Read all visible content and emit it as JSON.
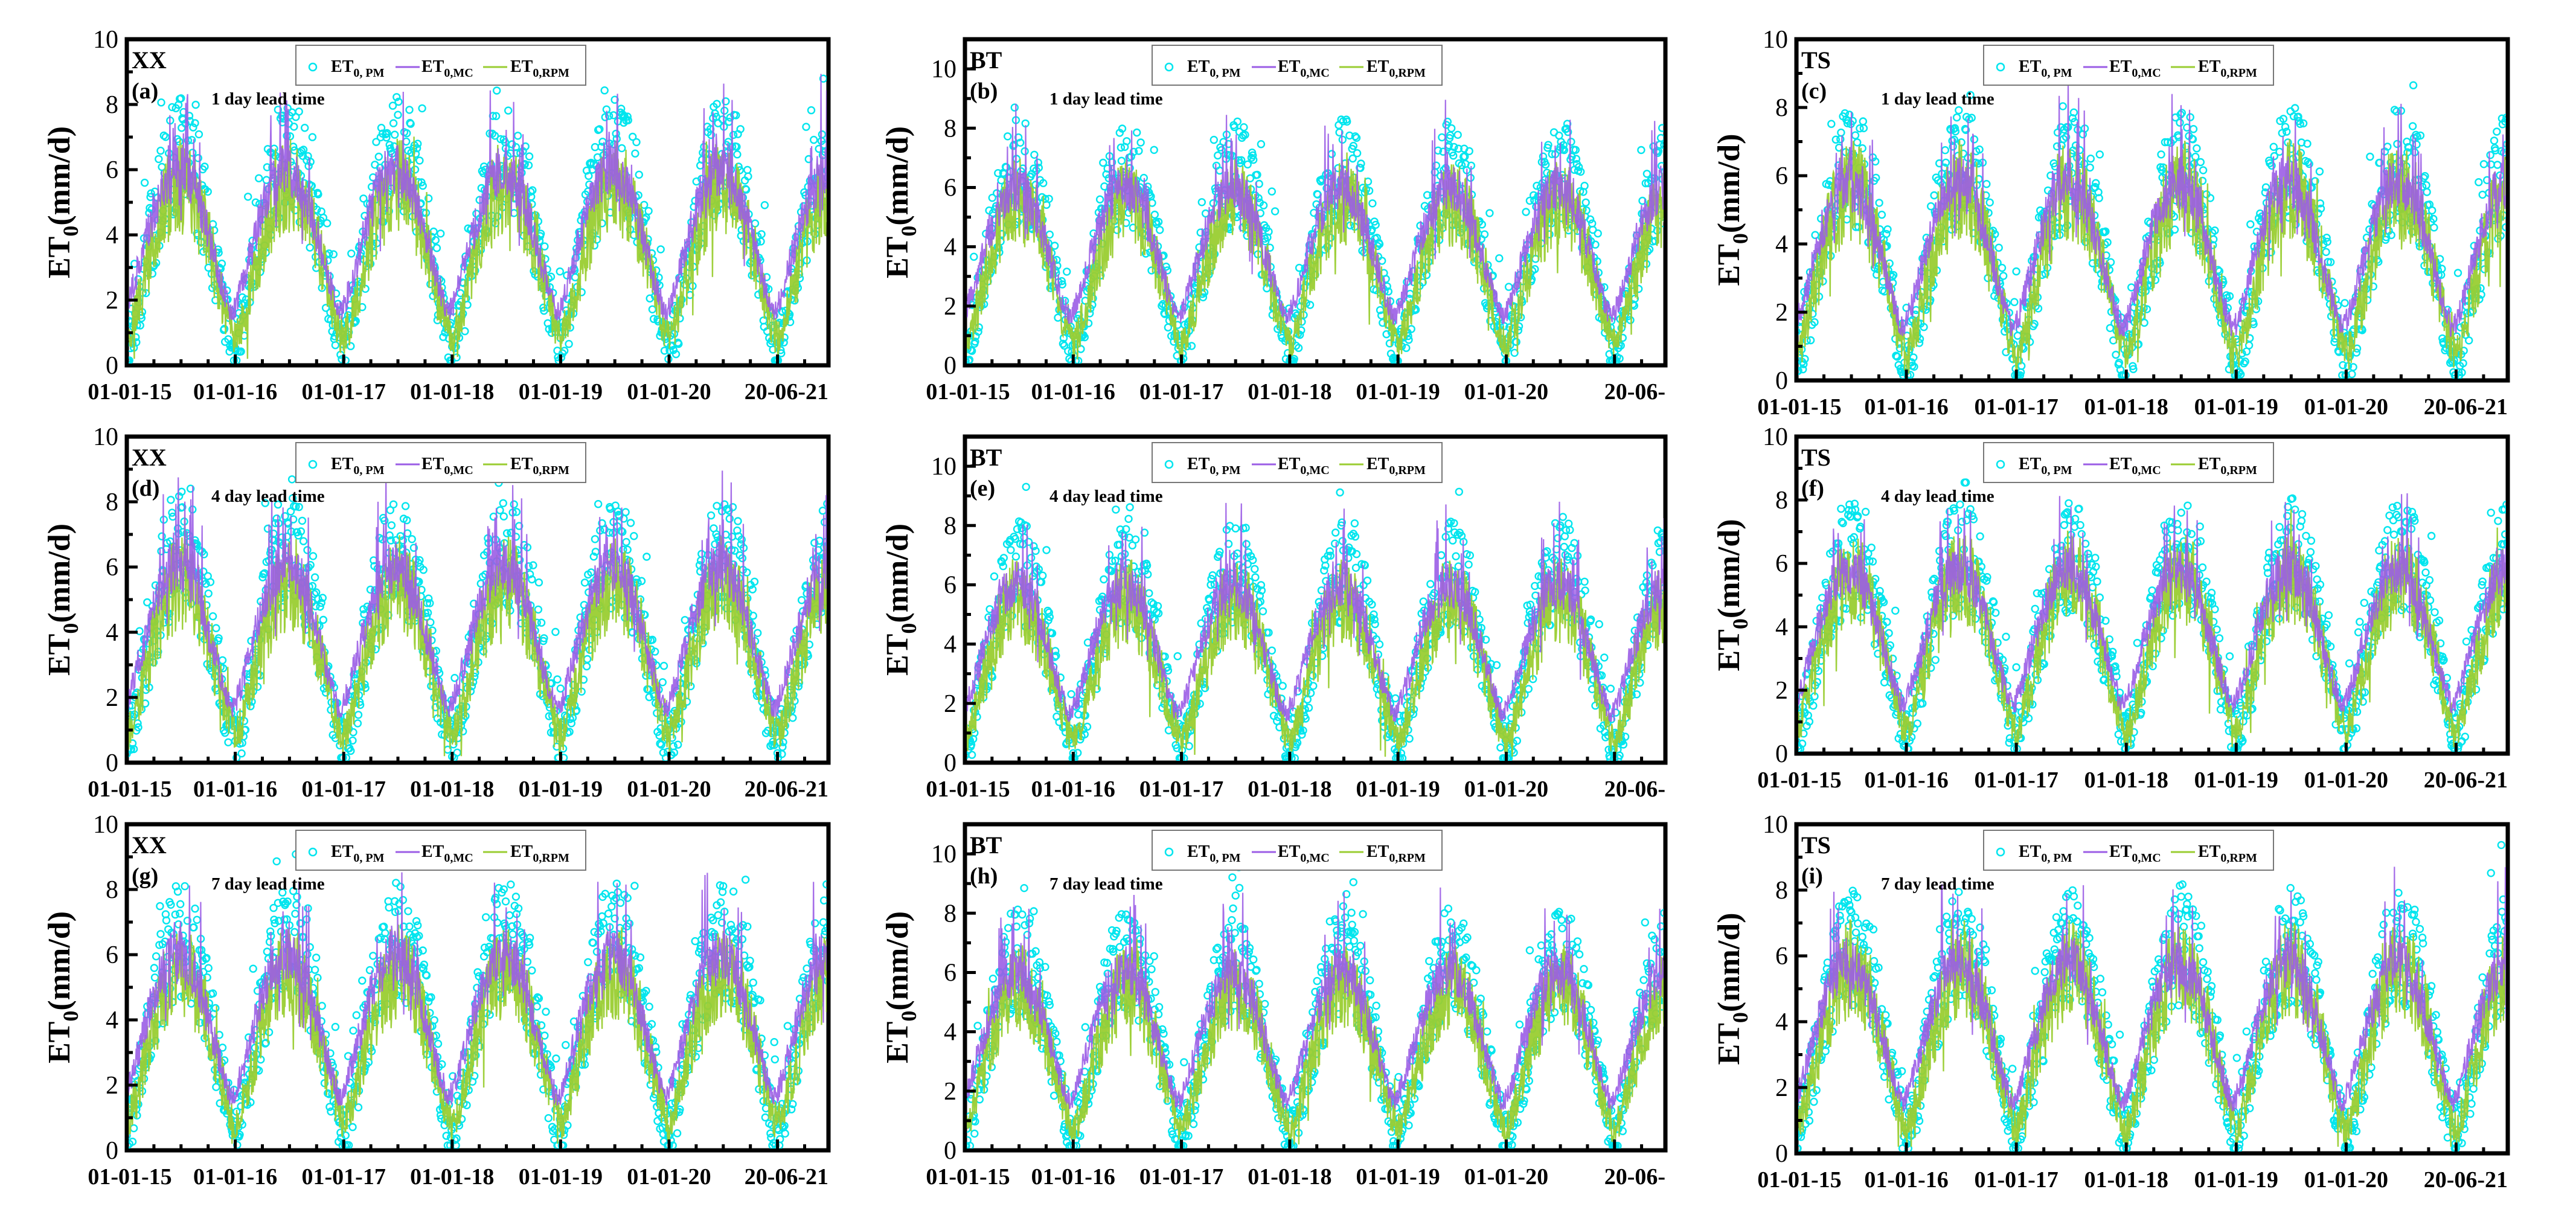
{
  "colors": {
    "pm": "#00E5EE",
    "mc": "#9B5DE5",
    "rpm": "#9ACD32",
    "axis": "#000000"
  },
  "legend": {
    "pm": {
      "main": "ET",
      "sub": "0, PM"
    },
    "mc": {
      "main": "ET",
      "sub": "0,MC"
    },
    "rpm": {
      "main": "ET",
      "sub": "0,RPM"
    }
  },
  "chart_data": [
    {
      "id": "a",
      "type": "line",
      "station": "XX",
      "panel": "(a)",
      "lead_time": "1 day lead time",
      "ylabel_main": "ET",
      "ylabel_sub": "0",
      "ylabel_unit": "(mm/d)",
      "ylim": [
        0,
        10
      ],
      "yticks": [
        "0",
        "2",
        "4",
        "6",
        "8",
        "10"
      ],
      "xticks": [
        "01-01-15",
        "01-01-16",
        "01-01-17",
        "01-01-18",
        "01-01-19",
        "01-01-20",
        "20-06-21"
      ],
      "x_range": [
        "2015-01-01",
        "2021-06-20"
      ],
      "series": [
        {
          "name": "ET0, PM",
          "style": "scatter",
          "seasonal_min": 0.5,
          "seasonal_max": 6.5
        },
        {
          "name": "ET0,MC",
          "style": "line",
          "seasonal_min": 1.6,
          "seasonal_max": 6.0
        },
        {
          "name": "ET0,RPM",
          "style": "line",
          "seasonal_min": 0.8,
          "seasonal_max": 5.5
        }
      ]
    },
    {
      "id": "b",
      "type": "line",
      "station": "BT",
      "panel": "(b)",
      "lead_time": "1 day lead time",
      "ylabel_main": "ET",
      "ylabel_sub": "0",
      "ylabel_unit": "(mm/d)",
      "ylim": [
        0,
        11
      ],
      "yticks": [
        "0",
        "2",
        "4",
        "6",
        "8",
        "10"
      ],
      "xticks": [
        "01-01-15",
        "01-01-16",
        "01-01-17",
        "01-01-18",
        "01-01-19",
        "01-01-20",
        "20-06-"
      ],
      "x_range": [
        "2015-01-01",
        "2021-06-20"
      ],
      "series": [
        {
          "name": "ET0, PM",
          "style": "scatter",
          "seasonal_min": 0.4,
          "seasonal_max": 6.5
        },
        {
          "name": "ET0,MC",
          "style": "line",
          "seasonal_min": 1.6,
          "seasonal_max": 6.0
        },
        {
          "name": "ET0,RPM",
          "style": "line",
          "seasonal_min": 0.7,
          "seasonal_max": 5.5
        }
      ]
    },
    {
      "id": "c",
      "type": "line",
      "station": "TS",
      "panel": "(c)",
      "lead_time": "1 day lead time",
      "ylabel_main": "ET",
      "ylabel_sub": "0",
      "ylabel_unit": "(mm/d)",
      "ylim": [
        0,
        10
      ],
      "yticks": [
        "0",
        "2",
        "4",
        "6",
        "8",
        "10"
      ],
      "xticks": [
        "01-01-15",
        "01-01-16",
        "01-01-17",
        "01-01-18",
        "01-01-19",
        "01-01-20",
        "20-06-21"
      ],
      "x_range": [
        "2015-01-01",
        "2021-06-20"
      ],
      "series": [
        {
          "name": "ET0, PM",
          "style": "scatter",
          "seasonal_min": 0.5,
          "seasonal_max": 6.3
        },
        {
          "name": "ET0,MC",
          "style": "line",
          "seasonal_min": 1.5,
          "seasonal_max": 5.8
        },
        {
          "name": "ET0,RPM",
          "style": "line",
          "seasonal_min": 0.7,
          "seasonal_max": 5.6
        }
      ]
    },
    {
      "id": "d",
      "type": "line",
      "station": "XX",
      "panel": "(d)",
      "lead_time": "4 day lead time",
      "ylabel_main": "ET",
      "ylabel_sub": "0",
      "ylabel_unit": "(mm/d)",
      "ylim": [
        0,
        10
      ],
      "yticks": [
        "0",
        "2",
        "4",
        "6",
        "8",
        "10"
      ],
      "xticks": [
        "01-01-15",
        "01-01-16",
        "01-01-17",
        "01-01-18",
        "01-01-19",
        "01-01-20",
        "20-06-21"
      ],
      "x_range": [
        "2015-01-01",
        "2021-06-20"
      ],
      "series": [
        {
          "name": "ET0, PM",
          "style": "scatter",
          "seasonal_min": 0.5,
          "seasonal_max": 6.5
        },
        {
          "name": "ET0,MC",
          "style": "line",
          "seasonal_min": 1.6,
          "seasonal_max": 6.0
        },
        {
          "name": "ET0,RPM",
          "style": "line",
          "seasonal_min": 0.8,
          "seasonal_max": 5.5
        }
      ]
    },
    {
      "id": "e",
      "type": "line",
      "station": "BT",
      "panel": "(e)",
      "lead_time": "4 day lead time",
      "ylabel_main": "ET",
      "ylabel_sub": "0",
      "ylabel_unit": "(mm/d)",
      "ylim": [
        0,
        11
      ],
      "yticks": [
        "0",
        "2",
        "4",
        "6",
        "8",
        "10"
      ],
      "xticks": [
        "01-01-15",
        "01-01-16",
        "01-01-17",
        "01-01-18",
        "01-01-19",
        "01-01-20",
        "20-06-"
      ],
      "x_range": [
        "2015-01-01",
        "2021-06-20"
      ],
      "series": [
        {
          "name": "ET0, PM",
          "style": "scatter",
          "seasonal_min": 0.4,
          "seasonal_max": 6.5
        },
        {
          "name": "ET0,MC",
          "style": "line",
          "seasonal_min": 1.6,
          "seasonal_max": 6.0
        },
        {
          "name": "ET0,RPM",
          "style": "line",
          "seasonal_min": 0.7,
          "seasonal_max": 5.5
        }
      ]
    },
    {
      "id": "f",
      "type": "line",
      "station": "TS",
      "panel": "(f)",
      "lead_time": "4 day lead time",
      "ylabel_main": "ET",
      "ylabel_sub": "0",
      "ylabel_unit": "(mm/d)",
      "ylim": [
        0,
        10
      ],
      "yticks": [
        "0",
        "2",
        "4",
        "6",
        "8",
        "10"
      ],
      "xticks": [
        "01-01-15",
        "01-01-16",
        "01-01-17",
        "01-01-18",
        "01-01-19",
        "01-01-20",
        "20-06-21"
      ],
      "x_range": [
        "2015-01-01",
        "2021-06-20"
      ],
      "series": [
        {
          "name": "ET0, PM",
          "style": "scatter",
          "seasonal_min": 0.5,
          "seasonal_max": 6.3
        },
        {
          "name": "ET0,MC",
          "style": "line",
          "seasonal_min": 1.5,
          "seasonal_max": 5.8
        },
        {
          "name": "ET0,RPM",
          "style": "line",
          "seasonal_min": 0.7,
          "seasonal_max": 5.6
        }
      ]
    },
    {
      "id": "g",
      "type": "line",
      "station": "XX",
      "panel": "(g)",
      "lead_time": "7 day lead time",
      "ylabel_main": "ET",
      "ylabel_sub": "0",
      "ylabel_unit": "(mm/d)",
      "ylim": [
        0,
        10
      ],
      "yticks": [
        "0",
        "2",
        "4",
        "6",
        "8",
        "10"
      ],
      "xticks": [
        "01-01-15",
        "01-01-16",
        "01-01-17",
        "01-01-18",
        "01-01-19",
        "01-01-20",
        "20-06-21"
      ],
      "x_range": [
        "2015-01-01",
        "2021-06-20"
      ],
      "series": [
        {
          "name": "ET0, PM",
          "style": "scatter",
          "seasonal_min": 0.5,
          "seasonal_max": 6.5
        },
        {
          "name": "ET0,MC",
          "style": "line",
          "seasonal_min": 1.6,
          "seasonal_max": 6.0
        },
        {
          "name": "ET0,RPM",
          "style": "line",
          "seasonal_min": 0.8,
          "seasonal_max": 5.5
        }
      ]
    },
    {
      "id": "h",
      "type": "line",
      "station": "BT",
      "panel": "(h)",
      "lead_time": "7 day lead time",
      "ylabel_main": "ET",
      "ylabel_sub": "0",
      "ylabel_unit": "(mm/d)",
      "ylim": [
        0,
        11
      ],
      "yticks": [
        "0",
        "2",
        "4",
        "6",
        "8",
        "10"
      ],
      "xticks": [
        "01-01-15",
        "01-01-16",
        "01-01-17",
        "01-01-18",
        "01-01-19",
        "01-01-20",
        "20-06-"
      ],
      "x_range": [
        "2015-01-01",
        "2021-06-20"
      ],
      "series": [
        {
          "name": "ET0, PM",
          "style": "scatter",
          "seasonal_min": 0.4,
          "seasonal_max": 6.5
        },
        {
          "name": "ET0,MC",
          "style": "line",
          "seasonal_min": 1.6,
          "seasonal_max": 6.0
        },
        {
          "name": "ET0,RPM",
          "style": "line",
          "seasonal_min": 0.7,
          "seasonal_max": 5.5
        }
      ]
    },
    {
      "id": "i",
      "type": "line",
      "station": "TS",
      "panel": "(i)",
      "lead_time": "7 day lead time",
      "ylabel_main": "ET",
      "ylabel_sub": "0",
      "ylabel_unit": "(mm/d)",
      "ylim": [
        0,
        10
      ],
      "yticks": [
        "0",
        "2",
        "4",
        "6",
        "8",
        "10"
      ],
      "xticks": [
        "01-01-15",
        "01-01-16",
        "01-01-17",
        "01-01-18",
        "01-01-19",
        "01-01-20",
        "20-06-21"
      ],
      "x_range": [
        "2015-01-01",
        "2021-06-20"
      ],
      "series": [
        {
          "name": "ET0, PM",
          "style": "scatter",
          "seasonal_min": 0.5,
          "seasonal_max": 6.3
        },
        {
          "name": "ET0,MC",
          "style": "line",
          "seasonal_min": 1.5,
          "seasonal_max": 5.8
        },
        {
          "name": "ET0,RPM",
          "style": "line",
          "seasonal_min": 0.7,
          "seasonal_max": 5.6
        }
      ]
    }
  ]
}
